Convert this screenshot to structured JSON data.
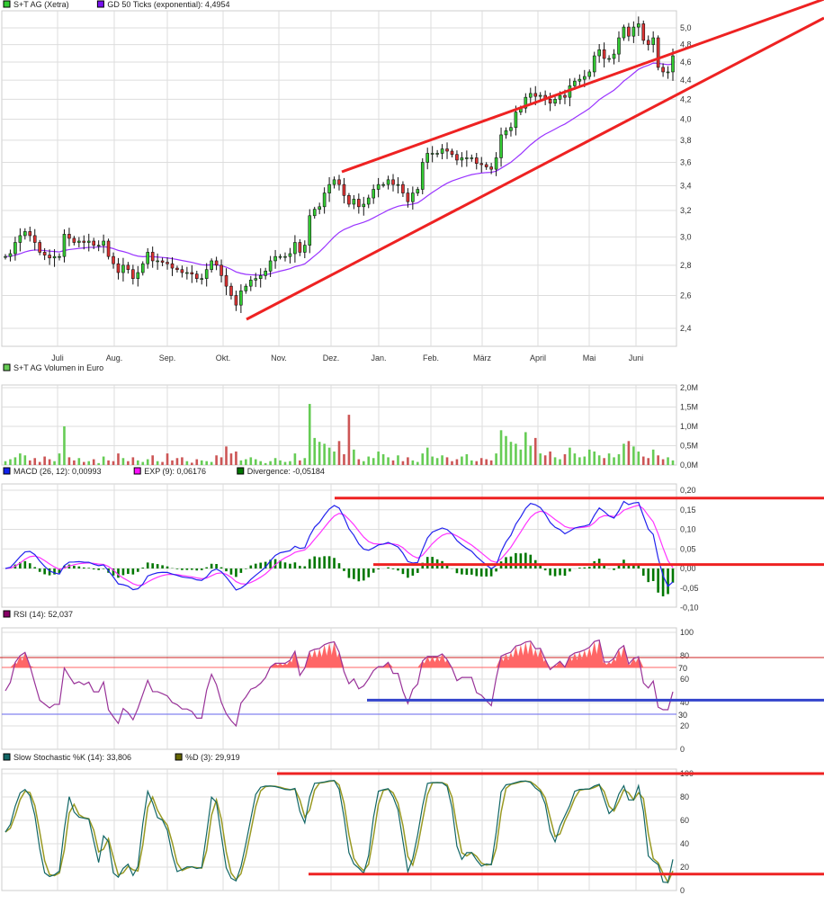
{
  "colors": {
    "up": "#33cc33",
    "down": "#dd3333",
    "ema": "#9933ff",
    "vol_up": "#66cc55",
    "vol_down": "#cc5555",
    "macd": "#2222ee",
    "signal": "#ff33ff",
    "divergence": "#007700",
    "rsi": "#993399",
    "stoch_k": "#116666",
    "stoch_d": "#999922",
    "trend": "#ee2222",
    "support": "#3344cc",
    "grid": "#dddddd"
  },
  "legends": {
    "price": [
      {
        "label": "S+T AG (Xetra)",
        "color": "#33cc33"
      },
      {
        "label": "GD 50 Ticks (exponential): 4,4954",
        "color": "#7711ee"
      }
    ],
    "volume": [
      {
        "label": "S+T AG Volumen in Euro",
        "color": "#66cc55"
      }
    ],
    "macd": [
      {
        "label": "MACD (26, 12): 0,00993",
        "color": "#1122ee"
      },
      {
        "label": "EXP (9): 0,06176",
        "color": "#ff11ff"
      },
      {
        "label": "Divergence: -0,05184",
        "color": "#007700"
      }
    ],
    "rsi": [
      {
        "label": "RSI (14): 52,037",
        "color": "#880066"
      }
    ],
    "stoch": [
      {
        "label": "Slow Stochastic %K (14): 33,806",
        "color": "#116666"
      },
      {
        "label": "%D (3): 29,919",
        "color": "#666600"
      }
    ]
  },
  "chart_data": [
    {
      "type": "candlestick",
      "scale": "log",
      "ylim": [
        2.35,
        5.15
      ],
      "yticks": [
        "2,4",
        "2,6",
        "2,8",
        "3,0",
        "3,2",
        "3,4",
        "3,6",
        "3,8",
        "4,0",
        "4,2",
        "4,4",
        "4,6",
        "4,8",
        "5,0"
      ],
      "ytick_values": [
        2.4,
        2.6,
        2.8,
        3.0,
        3.2,
        3.4,
        3.6,
        3.8,
        4.0,
        4.2,
        4.4,
        4.6,
        4.8,
        5.0
      ],
      "months": [
        "Juli",
        "Aug.",
        "Sep.",
        "Okt.",
        "Nov.",
        "Dez.",
        "Jan.",
        "Feb.",
        "März",
        "April",
        "Mai",
        "Juni"
      ],
      "close": [
        2.86,
        2.88,
        2.96,
        3.01,
        3.04,
        3.01,
        2.96,
        2.89,
        2.87,
        2.85,
        2.86,
        2.86,
        3.02,
        2.99,
        2.96,
        2.97,
        2.96,
        2.97,
        2.94,
        2.94,
        2.97,
        2.86,
        2.81,
        2.75,
        2.8,
        2.77,
        2.71,
        2.75,
        2.81,
        2.89,
        2.83,
        2.83,
        2.82,
        2.81,
        2.78,
        2.77,
        2.75,
        2.75,
        2.74,
        2.71,
        2.71,
        2.77,
        2.83,
        2.8,
        2.73,
        2.66,
        2.6,
        2.54,
        2.63,
        2.66,
        2.7,
        2.71,
        2.73,
        2.76,
        2.83,
        2.86,
        2.86,
        2.86,
        2.88,
        2.96,
        2.89,
        2.94,
        3.16,
        3.21,
        3.23,
        3.34,
        3.41,
        3.45,
        3.41,
        3.32,
        3.25,
        3.29,
        3.23,
        3.25,
        3.3,
        3.37,
        3.41,
        3.41,
        3.45,
        3.41,
        3.41,
        3.34,
        3.27,
        3.34,
        3.37,
        3.6,
        3.68,
        3.68,
        3.68,
        3.72,
        3.7,
        3.67,
        3.62,
        3.64,
        3.64,
        3.64,
        3.59,
        3.58,
        3.56,
        3.54,
        3.64,
        3.85,
        3.89,
        3.92,
        4.07,
        4.11,
        4.22,
        4.26,
        4.23,
        4.24,
        4.2,
        4.16,
        4.2,
        4.24,
        4.22,
        4.34,
        4.39,
        4.41,
        4.44,
        4.49,
        4.67,
        4.74,
        4.64,
        4.64,
        4.69,
        4.88,
        5.01,
        4.9,
        5.01,
        5.05,
        4.85,
        4.8,
        4.88,
        4.54,
        4.49,
        4.49,
        4.67
      ],
      "trendlines": [
        {
          "from_price": 3.51,
          "direction": "up",
          "kind": "resistance"
        },
        {
          "from_price": 2.45,
          "direction": "up",
          "kind": "support"
        }
      ]
    },
    {
      "type": "bar",
      "unit": "M",
      "ylim": [
        0,
        2.0
      ],
      "yticks": [
        "0,0M",
        "0,5M",
        "1,0M",
        "1,5M",
        "2,0M"
      ],
      "ytick_values": [
        0,
        0.5,
        1.0,
        1.5,
        2.0
      ],
      "volume": [
        0.1,
        0.15,
        0.2,
        0.3,
        0.25,
        0.12,
        0.18,
        0.08,
        0.22,
        0.15,
        0.1,
        0.3,
        1.0,
        0.2,
        0.12,
        0.18,
        0.08,
        0.1,
        0.15,
        0.05,
        0.22,
        0.12,
        0.1,
        0.3,
        0.18,
        0.1,
        0.2,
        0.12,
        0.08,
        0.15,
        0.25,
        0.1,
        0.08,
        0.3,
        0.12,
        0.18,
        0.2,
        0.1,
        0.06,
        0.15,
        0.12,
        0.1,
        0.08,
        0.25,
        0.2,
        0.48,
        0.3,
        0.35,
        0.12,
        0.15,
        0.2,
        0.15,
        0.1,
        0.05,
        0.1,
        0.18,
        0.12,
        0.08,
        0.1,
        0.3,
        0.12,
        0.18,
        1.58,
        0.7,
        0.6,
        0.55,
        0.45,
        0.35,
        0.62,
        0.28,
        1.3,
        0.4,
        0.15,
        0.1,
        0.22,
        0.18,
        0.35,
        0.28,
        0.2,
        0.12,
        0.25,
        0.1,
        0.2,
        0.12,
        0.08,
        0.3,
        0.45,
        0.22,
        0.18,
        0.25,
        0.2,
        0.1,
        0.15,
        0.22,
        0.28,
        0.12,
        0.1,
        0.18,
        0.15,
        0.12,
        0.3,
        0.9,
        0.75,
        0.6,
        0.55,
        0.4,
        0.85,
        0.5,
        0.7,
        0.3,
        0.25,
        0.35,
        0.2,
        0.15,
        0.28,
        0.45,
        0.3,
        0.2,
        0.22,
        0.4,
        0.35,
        0.25,
        0.18,
        0.3,
        0.2,
        0.28,
        0.55,
        0.62,
        0.48,
        0.35,
        0.22,
        0.18,
        0.4,
        0.25,
        0.15,
        0.2,
        0.12
      ]
    },
    {
      "type": "line",
      "name": "MACD",
      "ylim": [
        -0.1,
        0.2
      ],
      "yticks": [
        "-0,10",
        "-0,05",
        "0,00",
        "0,05",
        "0,10",
        "0,15",
        "0,20"
      ],
      "ytick_values": [
        -0.1,
        -0.05,
        0,
        0.05,
        0.1,
        0.15,
        0.2
      ],
      "levels": [
        0.18,
        0.01
      ]
    },
    {
      "type": "line",
      "name": "RSI",
      "ylim": [
        0,
        100
      ],
      "yticks": [
        "0",
        "20",
        "40",
        "60",
        "80",
        "100"
      ],
      "ytick_values": [
        0,
        20,
        40,
        60,
        80,
        100
      ],
      "bands": {
        "upper": 70,
        "lower": 30,
        "upper_label": "70",
        "lower_label": "30"
      },
      "level": 42
    },
    {
      "type": "line",
      "name": "Slow Stochastic",
      "ylim": [
        0,
        100
      ],
      "yticks": [
        "0",
        "20",
        "40",
        "60",
        "80",
        "100"
      ],
      "ytick_values": [
        0,
        20,
        40,
        60,
        80,
        100
      ],
      "levels": [
        100,
        14
      ]
    }
  ]
}
